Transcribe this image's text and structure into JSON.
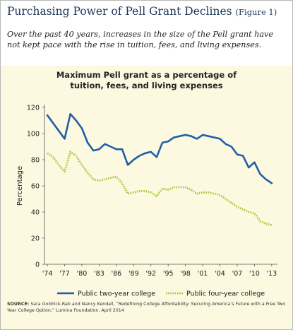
{
  "header": {
    "title": "Purchasing Power of Pell Grant Declines",
    "figure_label": "(Figure 1)",
    "subtitle": "Over the past 40 years, increases in the size of the Pell grant have not kept pace with the rise in tuition, fees, and living expenses."
  },
  "source": {
    "label": "SOURCE:",
    "text": "Sara Goldrick-Rab and Nancy Kendall, “Redefining College Affordability: Securing America’s Future with a Free Two Year College Option,” Lumina Foundation, April 2014"
  },
  "colors": {
    "two_year": "#1f5fa6",
    "four_year": "#a6c73c",
    "plot_background": "#fdf8e0",
    "title_color": "#1d3557"
  },
  "chart_data": {
    "type": "line",
    "title_line1": "Maximum Pell grant as a percentage of",
    "title_line2": "tuition, fees, and living expenses",
    "xlabel": "",
    "ylabel": "Percentage",
    "x": [
      1974,
      1975,
      1976,
      1977,
      1978,
      1979,
      1980,
      1981,
      1982,
      1983,
      1984,
      1985,
      1986,
      1987,
      1988,
      1989,
      1990,
      1991,
      1992,
      1993,
      1994,
      1995,
      1996,
      1997,
      1998,
      1999,
      2000,
      2001,
      2002,
      2003,
      2004,
      2005,
      2006,
      2007,
      2008,
      2009,
      2010,
      2011,
      2012,
      2013
    ],
    "x_tick_labels": [
      "'74",
      "'77",
      "'80",
      "'83",
      "'86",
      "'89",
      "'92",
      "'95",
      "'98",
      "'01",
      "'04",
      "'07",
      "'10",
      "'13"
    ],
    "x_tick_values": [
      1974,
      1977,
      1980,
      1983,
      1986,
      1989,
      1992,
      1995,
      1998,
      2001,
      2004,
      2007,
      2010,
      2013
    ],
    "xlim": [
      1973.5,
      2014
    ],
    "ylim": [
      0,
      120
    ],
    "y_ticks": [
      0,
      20,
      40,
      60,
      80,
      100,
      120
    ],
    "grid": false,
    "legend_position": "bottom",
    "series": [
      {
        "name": "Public two-year college",
        "style": "solid",
        "values": [
          114,
          108,
          102,
          96,
          115,
          110,
          104,
          93,
          87,
          88,
          92,
          90,
          88,
          88,
          76,
          80,
          83,
          85,
          86,
          82,
          93,
          94,
          97,
          98,
          99,
          98,
          96,
          99,
          98,
          97,
          96,
          92,
          90,
          84,
          83,
          74,
          78,
          69,
          65,
          62
        ]
      },
      {
        "name": "Public four-year college",
        "style": "dotted",
        "values": [
          85,
          82,
          76,
          71,
          86,
          83,
          76,
          70,
          65,
          64,
          65,
          66,
          67,
          62,
          54,
          55,
          56,
          56,
          55,
          52,
          58,
          57,
          59,
          59,
          59,
          57,
          54,
          55,
          55,
          54,
          53,
          50,
          47,
          44,
          42,
          40,
          39,
          33,
          31,
          30
        ]
      }
    ]
  }
}
